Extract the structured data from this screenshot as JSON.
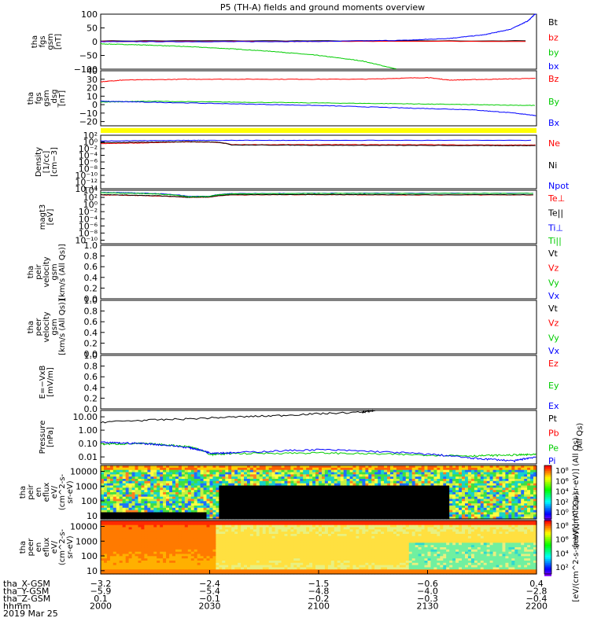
{
  "title": "P5 (TH-A) fields and ground moments overview",
  "chart_data": [
    {
      "type": "line",
      "ylabel": [
        "tha",
        "fgs",
        "gsm",
        "[nT]"
      ],
      "ylim": [
        -100,
        100
      ],
      "yticks": [
        "100",
        "50",
        "0",
        "−50",
        "−100"
      ],
      "yticks_values": [
        100,
        50,
        0,
        -50,
        -100
      ],
      "series": [
        {
          "name": "Bt",
          "color": "#000000",
          "x": [
            0,
            1
          ],
          "values": [
            3,
            3
          ]
        },
        {
          "name": "bz",
          "color": "#ff0000",
          "x": [
            0,
            1
          ],
          "values": [
            1,
            1
          ]
        },
        {
          "name": "by",
          "color": "#00cc00",
          "x": [
            0,
            0.1,
            0.2,
            0.3,
            0.4,
            0.5,
            0.6,
            0.68
          ],
          "values": [
            -8,
            -12,
            -18,
            -26,
            -36,
            -50,
            -70,
            -100
          ]
        },
        {
          "name": "bx",
          "color": "#0000ff",
          "x": [
            0,
            0.3,
            0.5,
            0.7,
            0.8,
            0.88,
            0.94,
            0.98,
            1.0
          ],
          "values": [
            0,
            0,
            1,
            5,
            12,
            25,
            45,
            75,
            105
          ]
        }
      ]
    },
    {
      "type": "line",
      "ylabel": [
        "tha",
        "fgs",
        "gsm",
        "_dsg",
        "[nT]"
      ],
      "ylim": [
        -25,
        40
      ],
      "yticks": [
        "40",
        "30",
        "20",
        "10",
        "0",
        "−10",
        "−20"
      ],
      "yticks_values": [
        40,
        30,
        20,
        10,
        0,
        -10,
        -20
      ],
      "series": [
        {
          "name": "Bz",
          "color": "#ff0000",
          "x": [
            0,
            0.05,
            0.2,
            0.4,
            0.6,
            0.75,
            0.8,
            0.9,
            1.0
          ],
          "values": [
            27,
            29,
            30,
            30,
            30,
            32,
            29,
            30,
            31
          ]
        },
        {
          "name": "By",
          "color": "#00cc00",
          "x": [
            0,
            0.1,
            0.3,
            0.5,
            0.7,
            0.85,
            1.0
          ],
          "values": [
            3,
            4,
            3,
            2,
            1,
            0,
            -1
          ]
        },
        {
          "name": "Bx",
          "color": "#0000ff",
          "x": [
            0,
            0.1,
            0.3,
            0.5,
            0.7,
            0.85,
            0.95,
            1.0
          ],
          "values": [
            4,
            3,
            1,
            -1,
            -4,
            -6,
            -10,
            -13
          ]
        }
      ]
    },
    {
      "type": "line",
      "ylabel": [
        "Density",
        "[1/cc]",
        "[cm−3]"
      ],
      "yscale": "log",
      "ylim": [
        1e-14,
        100
      ],
      "yticks": [
        "10²",
        "10⁰",
        "10⁻²",
        "10⁻⁴",
        "10⁻⁶",
        "10⁻⁸",
        "10⁻¹⁰",
        "10⁻¹²",
        "10⁻¹⁴"
      ],
      "yticks_values": [
        100,
        1,
        0.01,
        0.0001,
        1e-06,
        1e-08,
        1e-10,
        1e-12,
        1e-14
      ],
      "series": [
        {
          "name": "Ne",
          "color": "#ff0000",
          "x": [
            0,
            0.1,
            0.2,
            0.26,
            0.3,
            0.5,
            0.7,
            0.9,
            1.0
          ],
          "values": [
            0.3,
            0.5,
            1.0,
            0.8,
            0.15,
            0.15,
            0.15,
            0.12,
            0.12
          ]
        },
        {
          "name": "Ni",
          "color": "#000000",
          "x": [
            0,
            0.1,
            0.2,
            0.26,
            0.3,
            0.5,
            0.7,
            0.9,
            1.0
          ],
          "values": [
            0.6,
            0.8,
            1.2,
            0.9,
            0.12,
            0.1,
            0.09,
            0.08,
            0.08
          ]
        },
        {
          "name": "Npot",
          "color": "#0000ff",
          "x": [
            0,
            0.2,
            0.25,
            0.5,
            1.0
          ],
          "values": [
            2,
            3,
            3,
            3,
            3
          ]
        }
      ]
    },
    {
      "type": "line",
      "ylabel": [
        "magt3",
        "[eV]"
      ],
      "yscale": "log",
      "ylim": [
        1e-11,
        10000
      ],
      "yticks": [
        "10⁴",
        "10²",
        "10⁰",
        "10⁻²",
        "10⁻⁴",
        "10⁻⁶",
        "10⁻⁸",
        "10⁻¹⁰"
      ],
      "yticks_values": [
        10000,
        100,
        1,
        0.01,
        0.0001,
        1e-06,
        1e-08,
        1e-10
      ],
      "series": [
        {
          "name": "Te⊥",
          "color": "#ff0000",
          "x": [
            0,
            0.1,
            0.2,
            0.25,
            0.3,
            0.5,
            0.7,
            1.0
          ],
          "values": [
            500,
            300,
            100,
            120,
            500,
            600,
            500,
            500
          ]
        },
        {
          "name": "Te||",
          "color": "#000000",
          "x": [
            0,
            0.1,
            0.2,
            0.25,
            0.3,
            0.5,
            0.7,
            1.0
          ],
          "values": [
            600,
            350,
            110,
            130,
            550,
            650,
            550,
            550
          ]
        },
        {
          "name": "Ti⊥",
          "color": "#0000ff",
          "x": [
            0,
            0.1,
            0.2,
            0.25,
            0.3,
            0.5,
            0.7,
            1.0
          ],
          "values": [
            2500,
            1500,
            200,
            200,
            1200,
            1500,
            1500,
            1500
          ]
        },
        {
          "name": "Ti||",
          "color": "#00cc00",
          "x": [
            0,
            0.1,
            0.2,
            0.25,
            0.3,
            0.5,
            0.7,
            1.0
          ],
          "values": [
            2000,
            1200,
            150,
            180,
            1000,
            1300,
            1300,
            1300
          ]
        }
      ]
    },
    {
      "type": "line",
      "ylabel": [
        "tha",
        "peir",
        "velocity",
        "gsm",
        "[km/s (All Qs)]"
      ],
      "ylim": [
        0,
        1
      ],
      "yticks": [
        "1.0",
        "0.8",
        "0.6",
        "0.4",
        "0.2",
        "0.0"
      ],
      "yticks_values": [
        1,
        0.8,
        0.6,
        0.4,
        0.2,
        0
      ],
      "series": [
        {
          "name": "Vt",
          "color": "#000000",
          "x": [],
          "values": []
        },
        {
          "name": "Vz",
          "color": "#ff0000",
          "x": [],
          "values": []
        },
        {
          "name": "Vy",
          "color": "#00cc00",
          "x": [],
          "values": []
        },
        {
          "name": "Vx",
          "color": "#0000ff",
          "x": [],
          "values": []
        }
      ]
    },
    {
      "type": "line",
      "ylabel": [
        "tha",
        "peer",
        "velocity",
        "gsm",
        "[km/s (All Qs)]"
      ],
      "ylim": [
        0,
        1
      ],
      "yticks": [
        "1.0",
        "0.8",
        "0.6",
        "0.4",
        "0.2",
        "0.0"
      ],
      "yticks_values": [
        1,
        0.8,
        0.6,
        0.4,
        0.2,
        0
      ],
      "series": [
        {
          "name": "Vt",
          "color": "#000000",
          "x": [],
          "values": []
        },
        {
          "name": "Vz",
          "color": "#ff0000",
          "x": [],
          "values": []
        },
        {
          "name": "Vy",
          "color": "#00cc00",
          "x": [],
          "values": []
        },
        {
          "name": "Vx",
          "color": "#0000ff",
          "x": [],
          "values": []
        }
      ]
    },
    {
      "type": "line",
      "ylabel": [
        "E=−VxB",
        "[mV/m]"
      ],
      "ylim": [
        0,
        1
      ],
      "yticks": [
        "1.0",
        "0.8",
        "0.6",
        "0.4",
        "0.2",
        "0.0"
      ],
      "yticks_values": [
        1,
        0.8,
        0.6,
        0.4,
        0.2,
        0
      ],
      "series": [
        {
          "name": "Ez",
          "color": "#ff0000",
          "x": [],
          "values": []
        },
        {
          "name": "Ey",
          "color": "#00cc00",
          "x": [],
          "values": []
        },
        {
          "name": "Ex",
          "color": "#0000ff",
          "x": [],
          "values": []
        }
      ]
    },
    {
      "type": "line",
      "ylabel": [
        "Pressure",
        "[nPa]"
      ],
      "yscale": "log",
      "ylim": [
        0.003,
        30
      ],
      "yticks": [
        "10.00",
        "1.00",
        "0.10",
        "0.01"
      ],
      "yticks_values": [
        10,
        1,
        0.1,
        0.01
      ],
      "series": [
        {
          "name": "Pt",
          "color": "#000000",
          "x": [
            0,
            0.2,
            0.4,
            0.6,
            0.63
          ],
          "values": [
            4,
            7,
            12,
            22,
            30
          ]
        },
        {
          "name": "Pb",
          "color": "#ff0000",
          "x": [],
          "values": []
        },
        {
          "name": "Pe",
          "color": "#00cc00",
          "x": [
            0,
            0.1,
            0.2,
            0.25,
            0.3,
            0.5,
            0.7,
            0.85,
            0.95,
            1.0
          ],
          "values": [
            0.09,
            0.1,
            0.06,
            0.015,
            0.018,
            0.02,
            0.015,
            0.012,
            0.014,
            0.015
          ]
        },
        {
          "name": "Pi",
          "color": "#0000ff",
          "x": [
            0,
            0.1,
            0.2,
            0.25,
            0.3,
            0.5,
            0.7,
            0.85,
            0.95,
            1.0
          ],
          "values": [
            0.12,
            0.1,
            0.05,
            0.02,
            0.02,
            0.035,
            0.02,
            0.008,
            0.005,
            0.01
          ]
        }
      ],
      "extra_label": "(All Qs)"
    },
    {
      "type": "heatmap",
      "ylabel": [
        "tha",
        "peir",
        "en",
        "eflux",
        "eV/",
        "(cm^2-s-",
        "sr-eV)"
      ],
      "yscale": "log",
      "ylim": [
        6,
        25000
      ],
      "yticks": [
        "10000",
        "1000",
        "100",
        "10"
      ],
      "yticks_values": [
        10000,
        1000,
        100,
        10
      ],
      "colorbar": {
        "ticks": [
          "10⁸",
          "10⁶",
          "10⁴",
          "10²",
          "10⁰"
        ],
        "label": "[eV/(cm^2-s-sr-eV)] (All Qs)"
      }
    },
    {
      "type": "heatmap",
      "ylabel": [
        "tha",
        "peer",
        "en",
        "eflux",
        "eV/",
        "(cm^2-s-",
        "sr-eV)"
      ],
      "yscale": "log",
      "ylim": [
        6,
        25000
      ],
      "yticks": [
        "10000",
        "1000",
        "100",
        "10"
      ],
      "yticks_values": [
        10000,
        1000,
        100,
        10
      ],
      "colorbar": {
        "ticks": [
          "10⁸",
          "10⁶",
          "10⁴",
          "10²"
        ],
        "label": "[eV/(cm^2-s-sr-eV)] (All Qs)"
      }
    }
  ],
  "xaxis": {
    "row_labels": [
      "tha_X-GSM",
      "tha_Y-GSM",
      "tha_Z-GSM",
      "hhmm",
      "2019 Mar 25"
    ],
    "ticks": [
      {
        "frac": 0.0,
        "rows": [
          "−3.2",
          "−5.9",
          "0.1",
          "2000"
        ]
      },
      {
        "frac": 0.3333,
        "rows": [
          "−2.4",
          "−5.4",
          "−0.1",
          "2030"
        ]
      },
      {
        "frac": 0.6667,
        "rows": [
          "−1.5",
          "−4.8",
          "−0.2",
          "2100"
        ]
      },
      {
        "frac": 1.0,
        "rows": [
          "−0.6",
          "−4.0",
          "−0.3",
          "2130"
        ]
      },
      {
        "frac": 1.3333,
        "rows": [
          "0.4",
          "−2.8",
          "−0.4",
          "2200"
        ]
      }
    ]
  },
  "colors": {
    "yellow_bar": "#ffff00"
  }
}
